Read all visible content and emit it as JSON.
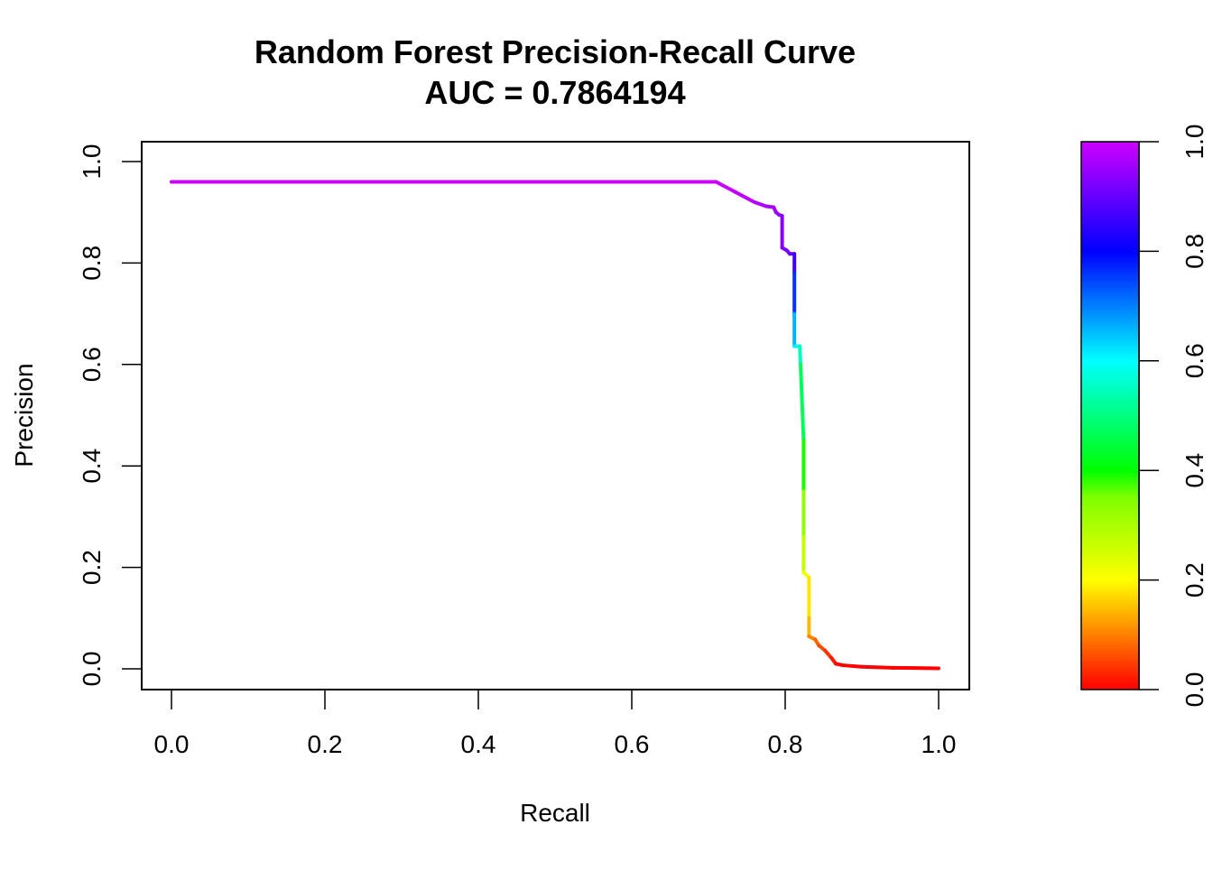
{
  "chart_data": {
    "type": "line",
    "title": "Random Forest Precision-Recall Curve",
    "subtitle": "AUC = 0.7864194",
    "xlabel": "Recall",
    "ylabel": "Precision",
    "xlim": [
      0,
      1
    ],
    "ylim": [
      0,
      1
    ],
    "grid": false,
    "x_ticks": [
      "0.0",
      "0.2",
      "0.4",
      "0.6",
      "0.8",
      "1.0"
    ],
    "y_ticks": [
      "0.0",
      "0.2",
      "0.4",
      "0.6",
      "0.8",
      "1.0"
    ],
    "series": [
      {
        "x": [
          0.0,
          0.71,
          0.735,
          0.76,
          0.775,
          0.785,
          0.788,
          0.792,
          0.796,
          0.796,
          0.802,
          0.806,
          0.812,
          0.812,
          0.812,
          0.812,
          0.819,
          0.819,
          0.82,
          0.824,
          0.824,
          0.824,
          0.824,
          0.831,
          0.831,
          0.831,
          0.831,
          0.839,
          0.844,
          0.852,
          0.86,
          0.866,
          0.875,
          0.9,
          0.94,
          1.0
        ],
        "y": [
          0.96,
          0.96,
          0.94,
          0.92,
          0.912,
          0.91,
          0.9,
          0.895,
          0.893,
          0.83,
          0.825,
          0.818,
          0.818,
          0.78,
          0.7,
          0.636,
          0.636,
          0.636,
          0.6,
          0.45,
          0.35,
          0.26,
          0.19,
          0.18,
          0.1,
          0.064,
          0.064,
          0.058,
          0.046,
          0.036,
          0.022,
          0.01,
          0.007,
          0.004,
          0.002,
          0.001
        ],
        "cutoff": [
          1.0,
          1.0,
          0.99,
          0.98,
          0.97,
          0.96,
          0.955,
          0.95,
          0.94,
          0.93,
          0.92,
          0.91,
          0.9,
          0.82,
          0.7,
          0.62,
          0.6,
          0.58,
          0.52,
          0.42,
          0.36,
          0.3,
          0.23,
          0.2,
          0.16,
          0.13,
          0.12,
          0.09,
          0.07,
          0.05,
          0.03,
          0.01,
          0.0,
          0.0,
          0.0,
          0.0
        ]
      }
    ],
    "colorbar": {
      "range": [
        0,
        1
      ],
      "ticks": [
        "0.0",
        "0.2",
        "0.4",
        "0.6",
        "0.8",
        "1.0"
      ],
      "colors": [
        "#ff0000",
        "#ff8000",
        "#ffff00",
        "#00ff00",
        "#00ffff",
        "#0000ff",
        "#cc00ff"
      ]
    },
    "curve_stroke_width": 4
  }
}
